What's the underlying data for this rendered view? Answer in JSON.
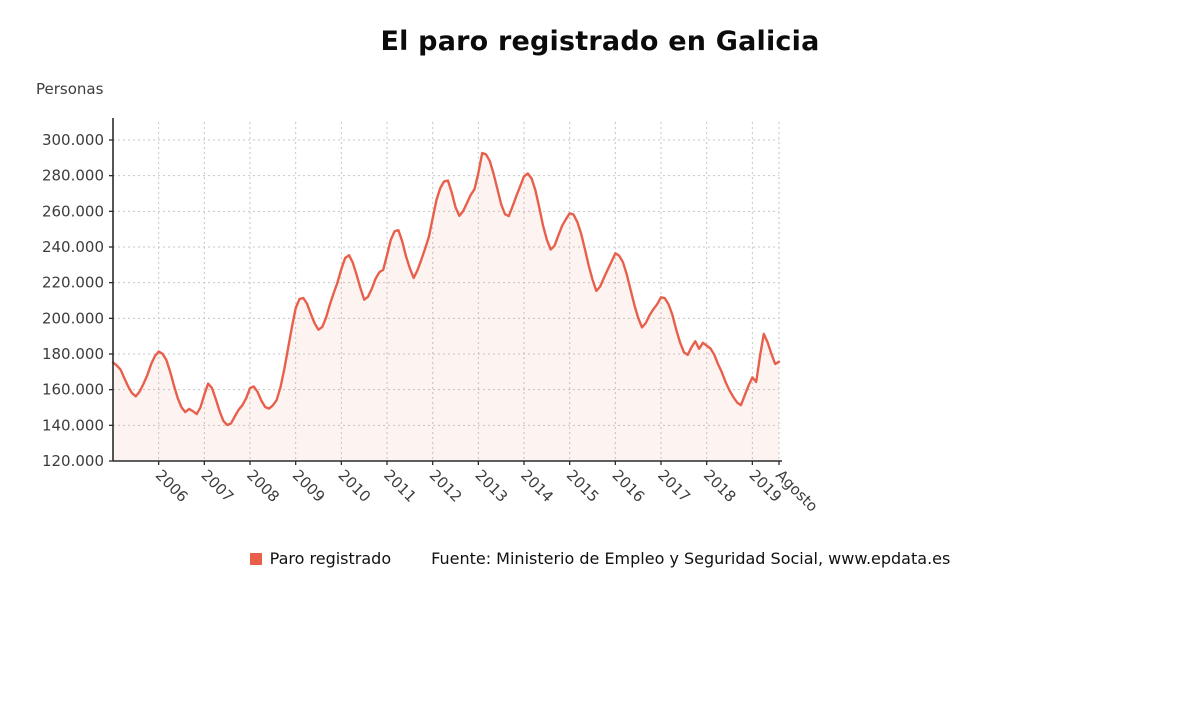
{
  "page": {
    "title": "El paro registrado en Galicia",
    "y_axis_title": "Personas",
    "legend": {
      "label": "Paro registrado",
      "color": "#e8604c"
    },
    "source": "Fuente: Ministerio de Empleo y Seguridad Social, www.epdata.es"
  },
  "chart_data": {
    "type": "area",
    "title": "El paro registrado en Galicia",
    "ylabel": "Personas",
    "ylim": [
      120000,
      300000
    ],
    "y_tick_step": 20000,
    "y_tick_labels": [
      "120.000",
      "140.000",
      "160.000",
      "180.000",
      "200.000",
      "220.000",
      "240.000",
      "260.000",
      "280.000",
      "300.000"
    ],
    "x_tick_labels": [
      "2006",
      "2007",
      "2008",
      "2009",
      "2010",
      "2011",
      "2012",
      "2013",
      "2014",
      "2015",
      "2016",
      "2017",
      "2018",
      "2019",
      "Agosto"
    ],
    "x_tick_indices": [
      12,
      24,
      36,
      48,
      60,
      72,
      84,
      96,
      108,
      120,
      132,
      144,
      156,
      168,
      175
    ],
    "start_month": "2005-01",
    "end_month": "2019-08",
    "grid": "dashed",
    "legend_position": "bottom",
    "line_color": "#e8604c",
    "fill_color": "rgba(232,96,76,0.07)",
    "grid_color": "#c6c6c6",
    "axis_color": "#2b2b2b",
    "tick_text_color": "#3d3d3d",
    "series": [
      {
        "name": "Paro registrado",
        "color": "#e8604c",
        "values": [
          175300,
          173600,
          171200,
          166400,
          161800,
          158100,
          156300,
          158900,
          163200,
          168100,
          174200,
          178800,
          181400,
          180100,
          176700,
          170200,
          162400,
          155300,
          150100,
          147400,
          149200,
          147900,
          146300,
          150100,
          157200,
          163400,
          161000,
          154700,
          147900,
          142500,
          140200,
          141100,
          145000,
          148700,
          151300,
          155200,
          160900,
          161800,
          158700,
          153800,
          150300,
          149400,
          151200,
          154100,
          161400,
          171600,
          183300,
          195100,
          205800,
          210900,
          211400,
          208100,
          202300,
          197100,
          193600,
          195200,
          200400,
          207800,
          214200,
          220100,
          227600,
          233800,
          235400,
          231200,
          224400,
          217000,
          210500,
          212100,
          216600,
          222300,
          225900,
          227200,
          235400,
          244100,
          248800,
          249400,
          243200,
          234800,
          228100,
          222600,
          227000,
          232800,
          239100,
          245800,
          256200,
          266400,
          273100,
          276800,
          277300,
          270600,
          262300,
          257500,
          260100,
          264600,
          269200,
          272400,
          281300,
          292700,
          291900,
          288200,
          281000,
          272500,
          263900,
          258400,
          257300,
          262800,
          268700,
          274100,
          279600,
          281200,
          278400,
          271800,
          262300,
          252100,
          244000,
          238600,
          240700,
          246400,
          251900,
          255600,
          258900,
          258200,
          254100,
          247500,
          238800,
          229600,
          221700,
          215400,
          217800,
          222700,
          227300,
          231800,
          236500,
          235100,
          231400,
          224600,
          216000,
          207500,
          200200,
          194900,
          197400,
          201800,
          205100,
          207900,
          211800,
          211300,
          207800,
          201900,
          193700,
          186400,
          181000,
          179500,
          183800,
          187100,
          182900,
          186300,
          184700,
          183100,
          179600,
          174200,
          169700,
          164100,
          159600,
          155900,
          152800,
          151300,
          156800,
          162400,
          166900,
          164300,
          178800,
          191300,
          186500,
          180100,
          174400,
          175700
        ]
      }
    ]
  }
}
